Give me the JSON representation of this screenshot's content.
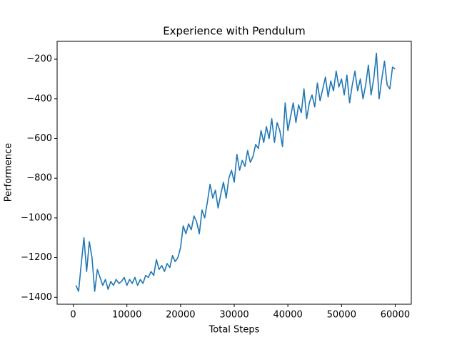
{
  "chart_data": {
    "type": "line",
    "title": "Experience with Pendulum",
    "x_label": "Total Steps",
    "y_label": "Performence",
    "x": [
      500,
      1000,
      1500,
      2000,
      2500,
      3000,
      3500,
      4000,
      4500,
      5000,
      5500,
      6000,
      6500,
      7000,
      7500,
      8000,
      8500,
      9000,
      9500,
      10000,
      10500,
      11000,
      11500,
      12000,
      12500,
      13000,
      13500,
      14000,
      14500,
      15000,
      15500,
      16000,
      16500,
      17000,
      17500,
      18000,
      18500,
      19000,
      19500,
      20000,
      20500,
      21000,
      21500,
      22000,
      22500,
      23000,
      23500,
      24000,
      24500,
      25000,
      25500,
      26000,
      26500,
      27000,
      27500,
      28000,
      28500,
      29000,
      29500,
      30000,
      30500,
      31000,
      31500,
      32000,
      32500,
      33000,
      33500,
      34000,
      34500,
      35000,
      35500,
      36000,
      36500,
      37000,
      37500,
      38000,
      38500,
      39000,
      39500,
      40000,
      40500,
      41000,
      41500,
      42000,
      42500,
      43000,
      43500,
      44000,
      44500,
      45000,
      45500,
      46000,
      46500,
      47000,
      47500,
      48000,
      48500,
      49000,
      49500,
      50000,
      50500,
      51000,
      51500,
      52000,
      52500,
      53000,
      53500,
      54000,
      54500,
      55000,
      55500,
      56000,
      56500,
      57000,
      57500,
      58000,
      58500,
      59000,
      59500,
      60000
    ],
    "series": [
      {
        "name": "Performence",
        "color": "#1f77b4",
        "values": [
          -1340,
          -1370,
          -1230,
          -1100,
          -1270,
          -1120,
          -1200,
          -1370,
          -1260,
          -1300,
          -1340,
          -1310,
          -1360,
          -1320,
          -1340,
          -1310,
          -1330,
          -1320,
          -1300,
          -1340,
          -1310,
          -1330,
          -1300,
          -1340,
          -1310,
          -1330,
          -1290,
          -1300,
          -1270,
          -1290,
          -1210,
          -1260,
          -1240,
          -1270,
          -1230,
          -1250,
          -1190,
          -1220,
          -1200,
          -1150,
          -1040,
          -1080,
          -1030,
          -1060,
          -990,
          -1020,
          -1080,
          -960,
          -1000,
          -920,
          -830,
          -900,
          -860,
          -950,
          -880,
          -820,
          -900,
          -800,
          -760,
          -820,
          -680,
          -760,
          -710,
          -740,
          -660,
          -720,
          -690,
          -630,
          -650,
          -560,
          -620,
          -540,
          -600,
          -500,
          -620,
          -520,
          -560,
          -640,
          -420,
          -560,
          -490,
          -420,
          -520,
          -430,
          -470,
          -350,
          -500,
          -420,
          -380,
          -440,
          -320,
          -410,
          -350,
          -290,
          -390,
          -310,
          -360,
          -260,
          -340,
          -300,
          -380,
          -280,
          -420,
          -330,
          -260,
          -360,
          -300,
          -400,
          -330,
          -230,
          -380,
          -300,
          -170,
          -400,
          -300,
          -210,
          -330,
          -350,
          -240,
          -250
        ]
      }
    ],
    "xlim": [
      -3000,
      63000
    ],
    "ylim": [
      -1435,
      -110
    ],
    "xticks": [
      0,
      10000,
      20000,
      30000,
      40000,
      50000,
      60000
    ],
    "yticks": [
      {
        "value": -1400,
        "label": "−1400"
      },
      {
        "value": -1200,
        "label": "−1200"
      },
      {
        "value": -1000,
        "label": "−1000"
      },
      {
        "value": -800,
        "label": "−800"
      },
      {
        "value": -600,
        "label": "−600"
      },
      {
        "value": -400,
        "label": "−400"
      },
      {
        "value": -200,
        "label": "−200"
      }
    ],
    "grid": false
  }
}
